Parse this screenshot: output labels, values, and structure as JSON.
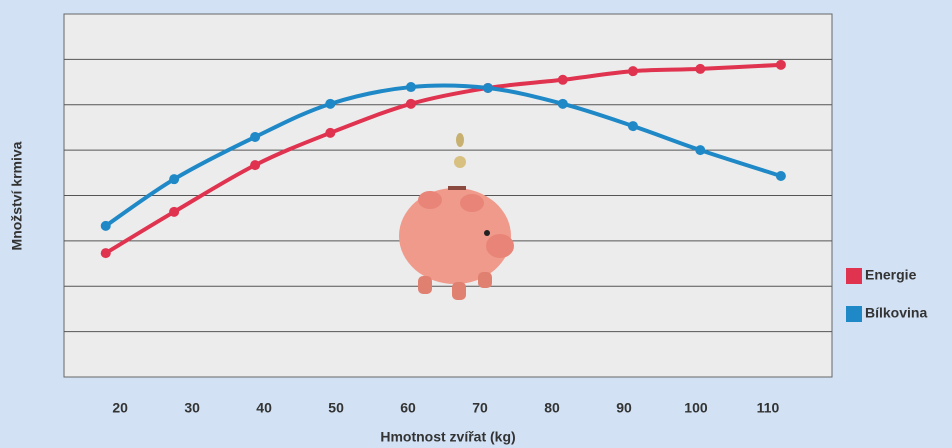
{
  "chart_data": {
    "type": "line",
    "xlabel": "Hmotnost zvířat (kg)",
    "ylabel": "Množství krmiva",
    "x": [
      18,
      27.5,
      38.75,
      49.2,
      60.4,
      71.1,
      81.5,
      91.25,
      100.6,
      111.8
    ],
    "series": [
      {
        "name": "Energie",
        "color": "#e0334f",
        "values": [
          2.73,
          3.64,
          4.67,
          5.38,
          6.02,
          6.37,
          6.55,
          6.74,
          6.79,
          6.88
        ]
      },
      {
        "name": "Bílkovina",
        "color": "#1f88c6",
        "values": [
          3.33,
          4.36,
          5.29,
          6.02,
          6.39,
          6.37,
          6.02,
          5.53,
          5.0,
          4.43
        ]
      }
    ],
    "xlim": [
      12.2,
      118.9
    ],
    "xticks": [
      20,
      30,
      40,
      50,
      60,
      70,
      80,
      90,
      100,
      110
    ],
    "ylim": [
      0,
      8
    ],
    "yticks": [
      1,
      2,
      3,
      4,
      5,
      6,
      7
    ],
    "ytick_labels": false,
    "grid": true
  }
}
